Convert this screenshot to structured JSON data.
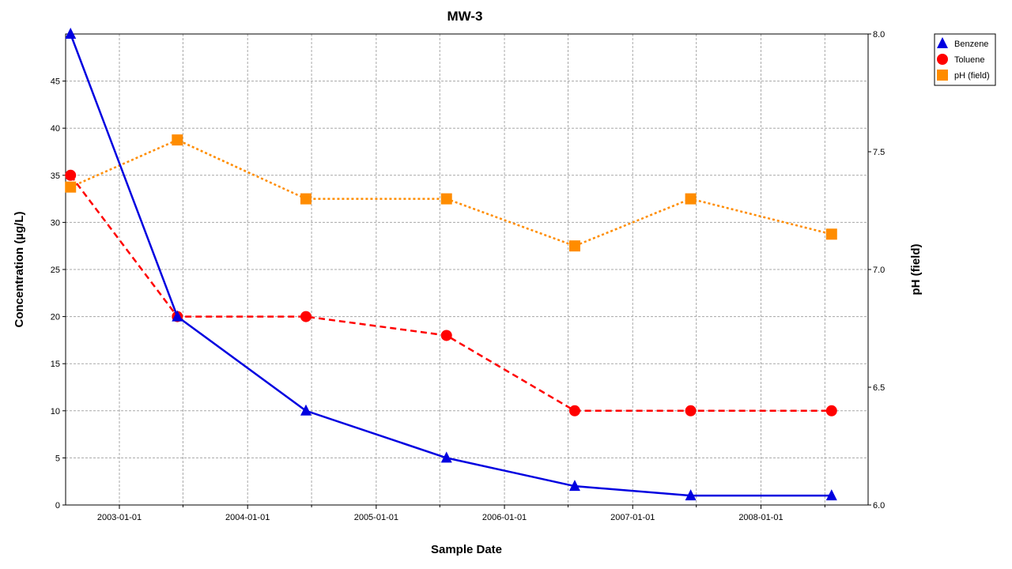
{
  "chart_data": {
    "type": "line",
    "title": "MW-3",
    "xlabel": "Sample Date",
    "ylabel": "Concentration (µg/L)",
    "y2label": "pH (field)",
    "x_ticks": [
      "2003-01-01",
      "2004-01-01",
      "2005-01-01",
      "2006-01-01",
      "2007-01-01",
      "2008-01-01"
    ],
    "x_range": [
      "2002-08-01",
      "2008-11-01"
    ],
    "ylim": [
      0,
      50
    ],
    "y_ticks": [
      0,
      5,
      10,
      15,
      20,
      25,
      30,
      35,
      40,
      45
    ],
    "y2lim": [
      6.0,
      8.0
    ],
    "y2_ticks": [
      "6.0",
      "6.5",
      "7.0",
      "7.5",
      "8.0"
    ],
    "grid": true,
    "legend_position": "right",
    "series": [
      {
        "name": "Benzene",
        "axis": "left",
        "color": "#0000e0",
        "line_style": "solid",
        "marker": "triangle",
        "x": [
          "2002-08-15",
          "2003-06-15",
          "2004-06-15",
          "2005-07-20",
          "2006-07-20",
          "2007-06-15",
          "2008-07-20"
        ],
        "y": [
          50,
          20,
          10,
          5,
          2,
          1,
          1
        ]
      },
      {
        "name": "Toluene",
        "axis": "left",
        "color": "#ff0000",
        "line_style": "dashed",
        "marker": "circle",
        "x": [
          "2002-08-15",
          "2003-06-15",
          "2004-06-15",
          "2005-07-20",
          "2006-07-20",
          "2007-06-15",
          "2008-07-20"
        ],
        "y": [
          35,
          20,
          20,
          18,
          10,
          10,
          10
        ]
      },
      {
        "name": "pH (field)",
        "axis": "right",
        "color": "#ff8c00",
        "line_style": "dotted",
        "marker": "square",
        "x": [
          "2002-08-15",
          "2003-06-15",
          "2004-06-15",
          "2005-07-20",
          "2006-07-20",
          "2007-06-15",
          "2008-07-20"
        ],
        "y": [
          7.35,
          7.55,
          7.3,
          7.3,
          7.1,
          7.3,
          7.15
        ]
      }
    ]
  }
}
